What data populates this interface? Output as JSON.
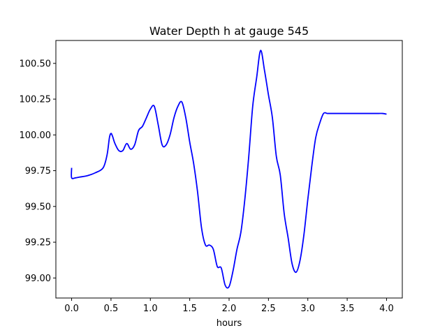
{
  "chart_data": {
    "type": "line",
    "title": "Water Depth h at gauge 545",
    "xlabel": "hours",
    "ylabel": "",
    "xlim": [
      -0.2,
      4.2
    ],
    "ylim": [
      98.86,
      100.66
    ],
    "xticks": [
      0.0,
      0.5,
      1.0,
      1.5,
      2.0,
      2.5,
      3.0,
      3.5,
      4.0
    ],
    "xtick_labels": [
      "0.0",
      "0.5",
      "1.0",
      "1.5",
      "2.0",
      "2.5",
      "3.0",
      "3.5",
      "4.0"
    ],
    "yticks": [
      99.0,
      99.25,
      99.5,
      99.75,
      100.0,
      100.25,
      100.5
    ],
    "ytick_labels": [
      "99.00",
      "99.25",
      "99.50",
      "99.75",
      "100.00",
      "100.25",
      "100.50"
    ],
    "grid": false,
    "series": [
      {
        "name": "",
        "color": "#0000ff",
        "x": [
          0.0,
          0.0,
          0.05,
          0.1,
          0.2,
          0.3,
          0.4,
          0.45,
          0.48,
          0.5,
          0.52,
          0.55,
          0.6,
          0.65,
          0.7,
          0.75,
          0.8,
          0.85,
          0.9,
          0.95,
          1.0,
          1.05,
          1.1,
          1.15,
          1.2,
          1.25,
          1.3,
          1.35,
          1.4,
          1.45,
          1.5,
          1.55,
          1.6,
          1.65,
          1.7,
          1.75,
          1.8,
          1.85,
          1.9,
          1.95,
          2.0,
          2.05,
          2.1,
          2.15,
          2.2,
          2.25,
          2.3,
          2.35,
          2.4,
          2.45,
          2.5,
          2.55,
          2.6,
          2.65,
          2.7,
          2.75,
          2.8,
          2.85,
          2.9,
          2.95,
          3.0,
          3.05,
          3.1,
          3.15,
          3.2,
          3.25,
          3.3,
          3.35,
          3.4,
          3.45,
          3.5,
          3.55,
          3.6,
          3.65,
          3.7,
          3.75,
          3.8,
          3.85,
          3.9,
          3.95,
          4.0
        ],
        "y": [
          99.77,
          99.7,
          99.7,
          99.705,
          99.715,
          99.735,
          99.77,
          99.86,
          99.98,
          100.01,
          99.99,
          99.94,
          99.89,
          99.89,
          99.94,
          99.9,
          99.93,
          100.03,
          100.06,
          100.12,
          100.18,
          100.2,
          100.07,
          99.93,
          99.93,
          100.0,
          100.12,
          100.2,
          100.23,
          100.12,
          99.95,
          99.8,
          99.6,
          99.35,
          99.23,
          99.23,
          99.2,
          99.08,
          99.07,
          98.95,
          98.94,
          99.05,
          99.2,
          99.32,
          99.55,
          99.85,
          100.2,
          100.4,
          100.59,
          100.45,
          100.28,
          100.12,
          99.85,
          99.72,
          99.45,
          99.28,
          99.1,
          99.04,
          99.12,
          99.3,
          99.55,
          99.78,
          99.98,
          100.08,
          100.15,
          100.15,
          100.15,
          100.15,
          100.15,
          100.15,
          100.15,
          100.15,
          100.15,
          100.15,
          100.15,
          100.15,
          100.15,
          100.15,
          100.15,
          100.15,
          100.145
        ]
      }
    ]
  }
}
